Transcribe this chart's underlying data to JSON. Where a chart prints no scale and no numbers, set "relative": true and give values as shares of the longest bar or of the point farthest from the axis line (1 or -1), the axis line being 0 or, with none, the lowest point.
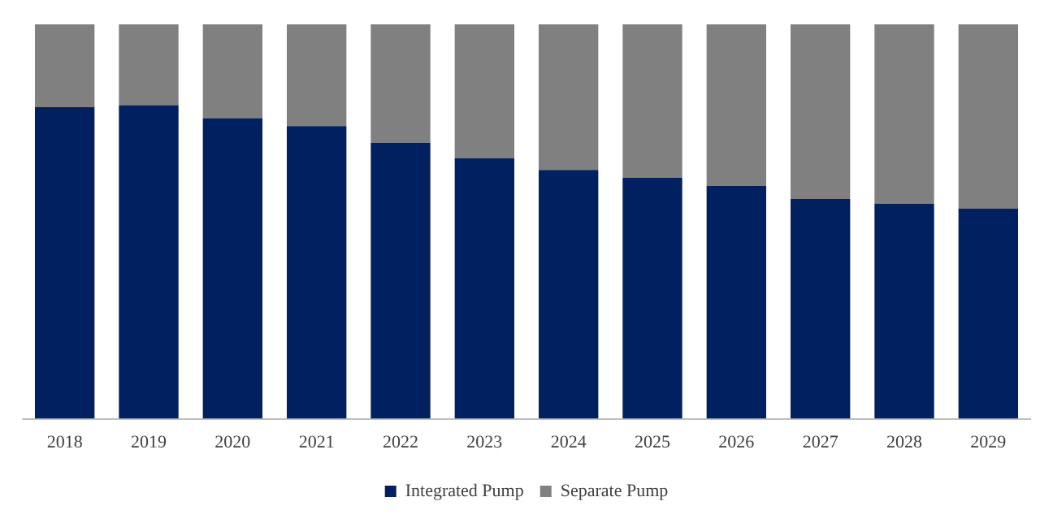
{
  "chart_data": {
    "type": "bar",
    "stacked": true,
    "relative": true,
    "legend": "bottom",
    "categories": [
      "2018",
      "2019",
      "2020",
      "2021",
      "2022",
      "2023",
      "2024",
      "2025",
      "2026",
      "2027",
      "2028",
      "2029"
    ],
    "series": [
      {
        "name": "Integrated Pump",
        "color": "#002060",
        "values": [
          0.79,
          0.795,
          0.762,
          0.742,
          0.7,
          0.66,
          0.631,
          0.611,
          0.59,
          0.557,
          0.545,
          0.533
        ]
      },
      {
        "name": "Separate Pump",
        "color": "#808080",
        "values": [
          0.21,
          0.205,
          0.238,
          0.258,
          0.3,
          0.34,
          0.369,
          0.389,
          0.41,
          0.443,
          0.455,
          0.467
        ]
      }
    ]
  }
}
